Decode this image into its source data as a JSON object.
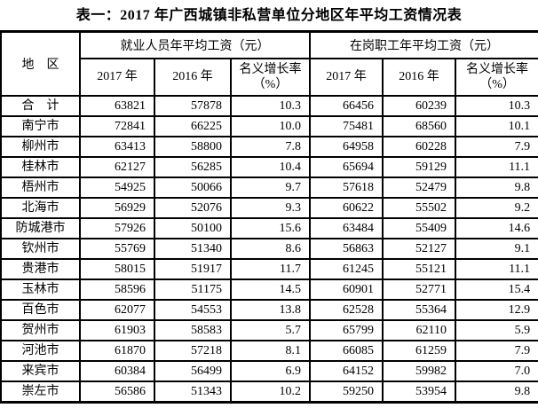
{
  "page_title": "表一：2017 年广西城镇非私营单位分地区年平均工资情况表",
  "table": {
    "region_header": "地　区",
    "groups": [
      {
        "label": "就业人员年平均工资（元）"
      },
      {
        "label": "在岗职工年平均工资（元）"
      }
    ],
    "sub_headers": [
      "2017 年",
      "2016 年",
      "名义增长率\n（%）",
      "2017 年",
      "2016 年",
      "名义增长率\n（%）"
    ],
    "rows": [
      {
        "region": "合　计",
        "values": [
          "63821",
          "57878",
          "10.3",
          "66456",
          "60239",
          "10.3"
        ]
      },
      {
        "region": "南宁市",
        "values": [
          "72841",
          "66225",
          "10.0",
          "75481",
          "68560",
          "10.1"
        ]
      },
      {
        "region": "柳州市",
        "values": [
          "63413",
          "58800",
          "7.8",
          "64958",
          "60228",
          "7.9"
        ]
      },
      {
        "region": "桂林市",
        "values": [
          "62127",
          "56285",
          "10.4",
          "65694",
          "59129",
          "11.1"
        ]
      },
      {
        "region": "梧州市",
        "values": [
          "54925",
          "50066",
          "9.7",
          "57618",
          "52479",
          "9.8"
        ]
      },
      {
        "region": "北海市",
        "values": [
          "56929",
          "52076",
          "9.3",
          "60622",
          "55502",
          "9.2"
        ]
      },
      {
        "region": "防城港市",
        "values": [
          "57926",
          "50100",
          "15.6",
          "63484",
          "55409",
          "14.6"
        ]
      },
      {
        "region": "钦州市",
        "values": [
          "55769",
          "51340",
          "8.6",
          "56863",
          "52127",
          "9.1"
        ]
      },
      {
        "region": "贵港市",
        "values": [
          "58015",
          "51917",
          "11.7",
          "61245",
          "55121",
          "11.1"
        ]
      },
      {
        "region": "玉林市",
        "values": [
          "58596",
          "51175",
          "14.5",
          "60901",
          "52771",
          "15.4"
        ]
      },
      {
        "region": "百色市",
        "values": [
          "62077",
          "54553",
          "13.8",
          "62528",
          "55364",
          "12.9"
        ]
      },
      {
        "region": "贺州市",
        "values": [
          "61903",
          "58583",
          "5.7",
          "65799",
          "62110",
          "5.9"
        ]
      },
      {
        "region": "河池市",
        "values": [
          "61870",
          "57218",
          "8.1",
          "66085",
          "61259",
          "7.9"
        ]
      },
      {
        "region": "来宾市",
        "values": [
          "60384",
          "56499",
          "6.9",
          "64152",
          "59982",
          "7.0"
        ]
      },
      {
        "region": "崇左市",
        "values": [
          "56586",
          "51343",
          "10.2",
          "59250",
          "53954",
          "9.8"
        ]
      }
    ]
  }
}
